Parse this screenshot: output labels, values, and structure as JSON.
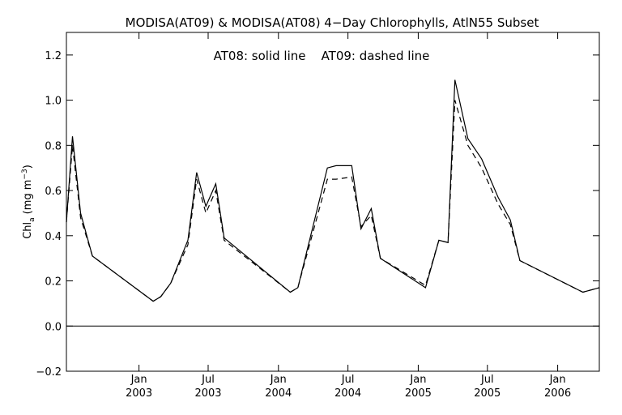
{
  "chart_data": {
    "type": "line",
    "title": "MODISA(AT09) & MODISA(AT08) 4−Day Chlorophylls, AtlN55 Subset",
    "annotation": "AT08: solid line    AT09: dashed line",
    "ylabel": "Chl",
    "ylabel_sub": "a",
    "ylabel_units": "(mg m",
    "ylabel_sup": "−3",
    "ylabel_close": ")",
    "xlim": [
      "2002-06-25",
      "2006-04-20"
    ],
    "ylim": [
      -0.2,
      1.3
    ],
    "y_ticks": [
      -0.2,
      0.0,
      0.2,
      0.4,
      0.6,
      0.8,
      1.0,
      1.2
    ],
    "y_tick_labels": [
      "−0.2",
      "0.0",
      "0.2",
      "0.4",
      "0.6",
      "0.8",
      "1.0",
      "1.2"
    ],
    "x_ticks": [
      {
        "date": "2003-01-01",
        "month": "Jan",
        "year": "2003"
      },
      {
        "date": "2003-07-01",
        "month": "Jul",
        "year": "2003"
      },
      {
        "date": "2004-01-01",
        "month": "Jan",
        "year": "2004"
      },
      {
        "date": "2004-07-01",
        "month": "Jul",
        "year": "2004"
      },
      {
        "date": "2005-01-01",
        "month": "Jan",
        "year": "2005"
      },
      {
        "date": "2005-07-01",
        "month": "Jul",
        "year": "2005"
      },
      {
        "date": "2006-01-01",
        "month": "Jan",
        "year": "2006"
      }
    ],
    "zero_line": 0.0,
    "series": [
      {
        "name": "AT08",
        "style": "solid",
        "points": [
          [
            "2002-06-25",
            0.46
          ],
          [
            "2002-07-11",
            0.84
          ],
          [
            "2002-08-01",
            0.5
          ],
          [
            "2002-09-01",
            0.31
          ],
          [
            "2003-02-07",
            0.11
          ],
          [
            "2003-02-27",
            0.13
          ],
          [
            "2003-03-25",
            0.19
          ],
          [
            "2003-05-09",
            0.38
          ],
          [
            "2003-06-01",
            0.68
          ],
          [
            "2003-06-25",
            0.53
          ],
          [
            "2003-07-21",
            0.63
          ],
          [
            "2003-08-12",
            0.39
          ],
          [
            "2004-02-01",
            0.15
          ],
          [
            "2004-02-21",
            0.17
          ],
          [
            "2004-05-08",
            0.7
          ],
          [
            "2004-05-31",
            0.71
          ],
          [
            "2004-07-11",
            0.71
          ],
          [
            "2004-08-04",
            0.43
          ],
          [
            "2004-08-31",
            0.52
          ],
          [
            "2004-09-24",
            0.3
          ],
          [
            "2005-01-20",
            0.17
          ],
          [
            "2005-02-24",
            0.38
          ],
          [
            "2005-03-20",
            0.37
          ],
          [
            "2005-04-07",
            1.09
          ],
          [
            "2005-05-11",
            0.83
          ],
          [
            "2005-06-16",
            0.74
          ],
          [
            "2005-07-29",
            0.57
          ],
          [
            "2005-08-30",
            0.47
          ],
          [
            "2005-09-24",
            0.29
          ],
          [
            "2006-03-08",
            0.15
          ],
          [
            "2006-04-20",
            0.17
          ]
        ]
      },
      {
        "name": "AT09",
        "style": "dashed",
        "points": [
          [
            "2002-06-25",
            0.46
          ],
          [
            "2002-07-11",
            0.8
          ],
          [
            "2002-08-01",
            0.48
          ],
          [
            "2002-09-01",
            0.31
          ],
          [
            "2003-02-07",
            0.11
          ],
          [
            "2003-02-27",
            0.13
          ],
          [
            "2003-03-25",
            0.19
          ],
          [
            "2003-05-09",
            0.36
          ],
          [
            "2003-06-01",
            0.65
          ],
          [
            "2003-06-25",
            0.5
          ],
          [
            "2003-07-21",
            0.6
          ],
          [
            "2003-08-12",
            0.38
          ],
          [
            "2004-02-01",
            0.15
          ],
          [
            "2004-02-21",
            0.17
          ],
          [
            "2004-05-08",
            0.65
          ],
          [
            "2004-05-31",
            0.65
          ],
          [
            "2004-07-11",
            0.66
          ],
          [
            "2004-08-04",
            0.44
          ],
          [
            "2004-08-31",
            0.49
          ],
          [
            "2004-09-24",
            0.3
          ],
          [
            "2005-01-20",
            0.18
          ],
          [
            "2005-02-24",
            0.38
          ],
          [
            "2005-03-20",
            0.37
          ],
          [
            "2005-04-07",
            1.0
          ],
          [
            "2005-05-11",
            0.8
          ],
          [
            "2005-06-16",
            0.7
          ],
          [
            "2005-07-29",
            0.54
          ],
          [
            "2005-08-30",
            0.45
          ],
          [
            "2005-09-24",
            0.29
          ],
          [
            "2006-03-08",
            0.15
          ],
          [
            "2006-04-20",
            0.17
          ]
        ]
      }
    ]
  }
}
